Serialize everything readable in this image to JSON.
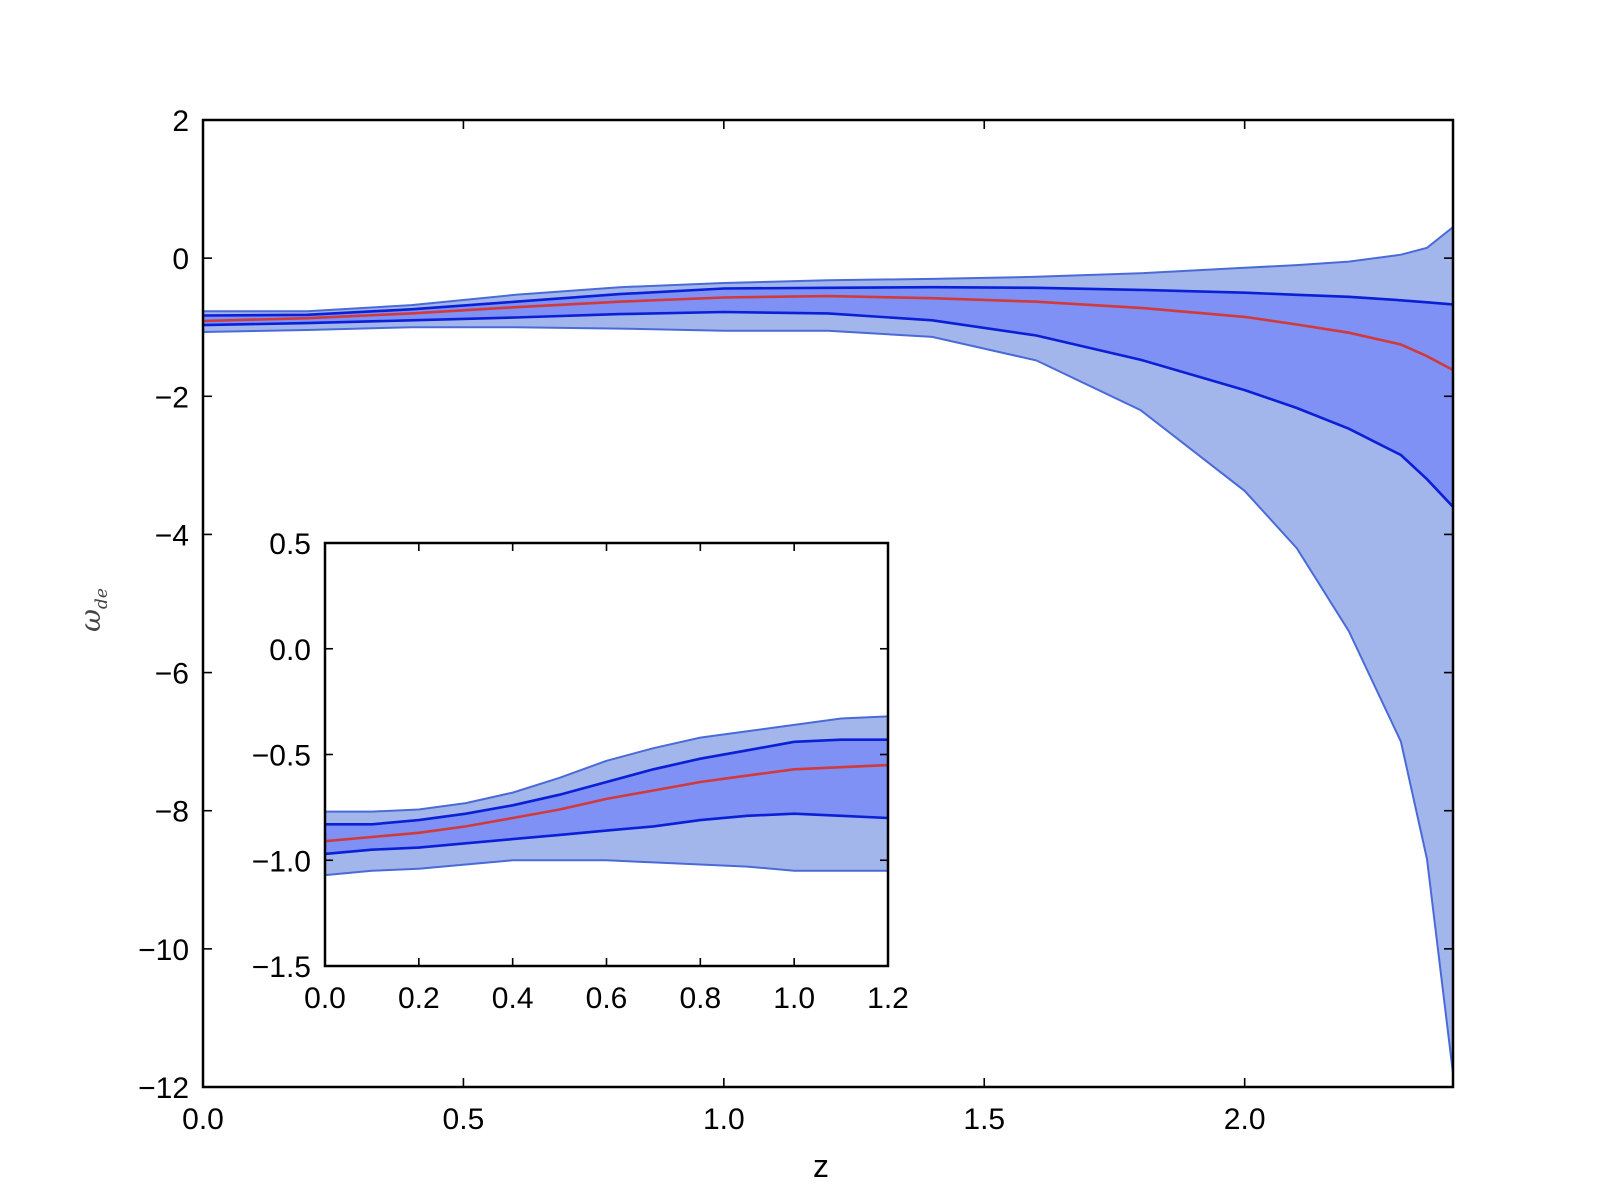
{
  "chart_data": [
    {
      "type": "area",
      "xlabel": "z",
      "ylabel": "ω",
      "ylabel_sub": "de",
      "xlim": [
        0,
        2.4
      ],
      "ylim": [
        -12,
        2
      ],
      "xticks": [
        0.0,
        0.5,
        1.0,
        1.5,
        2.0
      ],
      "xtick_labels": [
        "0.0",
        "0.5",
        "1.0",
        "1.5",
        "2.0"
      ],
      "yticks": [
        -12,
        -10,
        -8,
        -6,
        -4,
        -2,
        0,
        2
      ],
      "ytick_labels": [
        "−12",
        "−10",
        "−8",
        "−6",
        "−4",
        "−2",
        "0",
        "2"
      ],
      "grid": false,
      "colors": {
        "outer_band": "#a3b6ec",
        "inner_band": "#7f91f5",
        "band_edge": "#0a1fd6",
        "outer_edge": "#4a6ad8",
        "mean": "#d03a3a"
      },
      "x": [
        0.0,
        0.2,
        0.4,
        0.6,
        0.8,
        1.0,
        1.2,
        1.4,
        1.6,
        1.8,
        2.0,
        2.1,
        2.2,
        2.3,
        2.35,
        2.4
      ],
      "series": [
        {
          "role": "outer_upper",
          "values": [
            -0.77,
            -0.77,
            -0.68,
            -0.53,
            -0.42,
            -0.36,
            -0.32,
            -0.3,
            -0.27,
            -0.22,
            -0.14,
            -0.1,
            -0.05,
            0.05,
            0.15,
            0.45
          ]
        },
        {
          "role": "inner_upper",
          "values": [
            -0.83,
            -0.82,
            -0.74,
            -0.63,
            -0.52,
            -0.44,
            -0.43,
            -0.42,
            -0.43,
            -0.46,
            -0.5,
            -0.53,
            -0.56,
            -0.61,
            -0.64,
            -0.67
          ]
        },
        {
          "role": "mean",
          "values": [
            -0.91,
            -0.87,
            -0.8,
            -0.71,
            -0.63,
            -0.57,
            -0.55,
            -0.58,
            -0.63,
            -0.72,
            -0.85,
            -0.96,
            -1.08,
            -1.25,
            -1.42,
            -1.62
          ]
        },
        {
          "role": "inner_lower",
          "values": [
            -0.97,
            -0.94,
            -0.9,
            -0.86,
            -0.81,
            -0.78,
            -0.8,
            -0.9,
            -1.12,
            -1.47,
            -1.91,
            -2.17,
            -2.47,
            -2.85,
            -3.2,
            -3.6
          ]
        },
        {
          "role": "outer_lower",
          "values": [
            -1.07,
            -1.04,
            -1.0,
            -1.0,
            -1.02,
            -1.05,
            -1.05,
            -1.14,
            -1.48,
            -2.2,
            -3.37,
            -4.2,
            -5.4,
            -7.0,
            -8.7,
            -11.8
          ]
        }
      ]
    },
    {
      "type": "area",
      "inset": true,
      "xlim": [
        0,
        1.2
      ],
      "ylim": [
        -1.5,
        0.5
      ],
      "xticks": [
        0.0,
        0.2,
        0.4,
        0.6,
        0.8,
        1.0,
        1.2
      ],
      "xtick_labels": [
        "0.0",
        "0.2",
        "0.4",
        "0.6",
        "0.8",
        "1.0",
        "1.2"
      ],
      "yticks": [
        -1.5,
        -1.0,
        -0.5,
        0.0,
        0.5
      ],
      "ytick_labels": [
        "−1.5",
        "−1.0",
        "−0.5",
        "0.0",
        "0.5"
      ],
      "grid": false,
      "x": [
        0.0,
        0.1,
        0.2,
        0.3,
        0.4,
        0.5,
        0.6,
        0.7,
        0.8,
        0.9,
        1.0,
        1.1,
        1.2
      ],
      "series": [
        {
          "role": "outer_upper",
          "values": [
            -0.77,
            -0.77,
            -0.76,
            -0.73,
            -0.68,
            -0.61,
            -0.53,
            -0.47,
            -0.42,
            -0.39,
            -0.36,
            -0.33,
            -0.32
          ]
        },
        {
          "role": "inner_upper",
          "values": [
            -0.83,
            -0.83,
            -0.81,
            -0.78,
            -0.74,
            -0.69,
            -0.63,
            -0.57,
            -0.52,
            -0.48,
            -0.44,
            -0.43,
            -0.43
          ]
        },
        {
          "role": "mean",
          "values": [
            -0.91,
            -0.89,
            -0.87,
            -0.84,
            -0.8,
            -0.76,
            -0.71,
            -0.67,
            -0.63,
            -0.6,
            -0.57,
            -0.56,
            -0.55
          ]
        },
        {
          "role": "inner_lower",
          "values": [
            -0.97,
            -0.95,
            -0.94,
            -0.92,
            -0.9,
            -0.88,
            -0.86,
            -0.84,
            -0.81,
            -0.79,
            -0.78,
            -0.79,
            -0.8
          ]
        },
        {
          "role": "outer_lower",
          "values": [
            -1.07,
            -1.05,
            -1.04,
            -1.02,
            -1.0,
            -1.0,
            -1.0,
            -1.01,
            -1.02,
            -1.03,
            -1.05,
            -1.05,
            -1.05
          ]
        }
      ]
    }
  ]
}
